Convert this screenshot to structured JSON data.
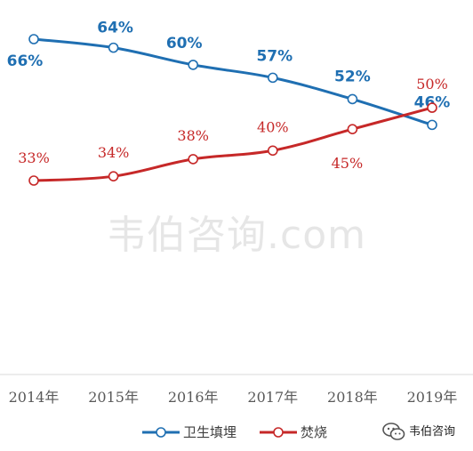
{
  "watermark": "韦伯咨询.com",
  "brand": {
    "name": "韦伯咨询",
    "icon": "wechat-icon"
  },
  "legend": [
    {
      "label": "卫生填埋",
      "color": "#1f6fb2"
    },
    {
      "label": "焚烧",
      "color": "#c62828"
    }
  ],
  "chart_data": {
    "type": "line",
    "title": "",
    "xlabel": "",
    "ylabel": "",
    "categories": [
      "2014年",
      "2015年",
      "2016年",
      "2017年",
      "2018年",
      "2019年"
    ],
    "ylim": [
      0,
      70
    ],
    "grid": false,
    "legend_position": "bottom",
    "series": [
      {
        "name": "卫生填埋",
        "color": "#1f6fb2",
        "values": [
          66,
          64,
          60,
          57,
          52,
          46
        ],
        "labels": [
          "66%",
          "64%",
          "60%",
          "57%",
          "52%",
          "46%"
        ]
      },
      {
        "name": "焚烧",
        "color": "#c62828",
        "values": [
          33,
          34,
          38,
          40,
          45,
          50
        ],
        "labels": [
          "33%",
          "34%",
          "38%",
          "40%",
          "45%",
          "50%"
        ]
      }
    ]
  }
}
